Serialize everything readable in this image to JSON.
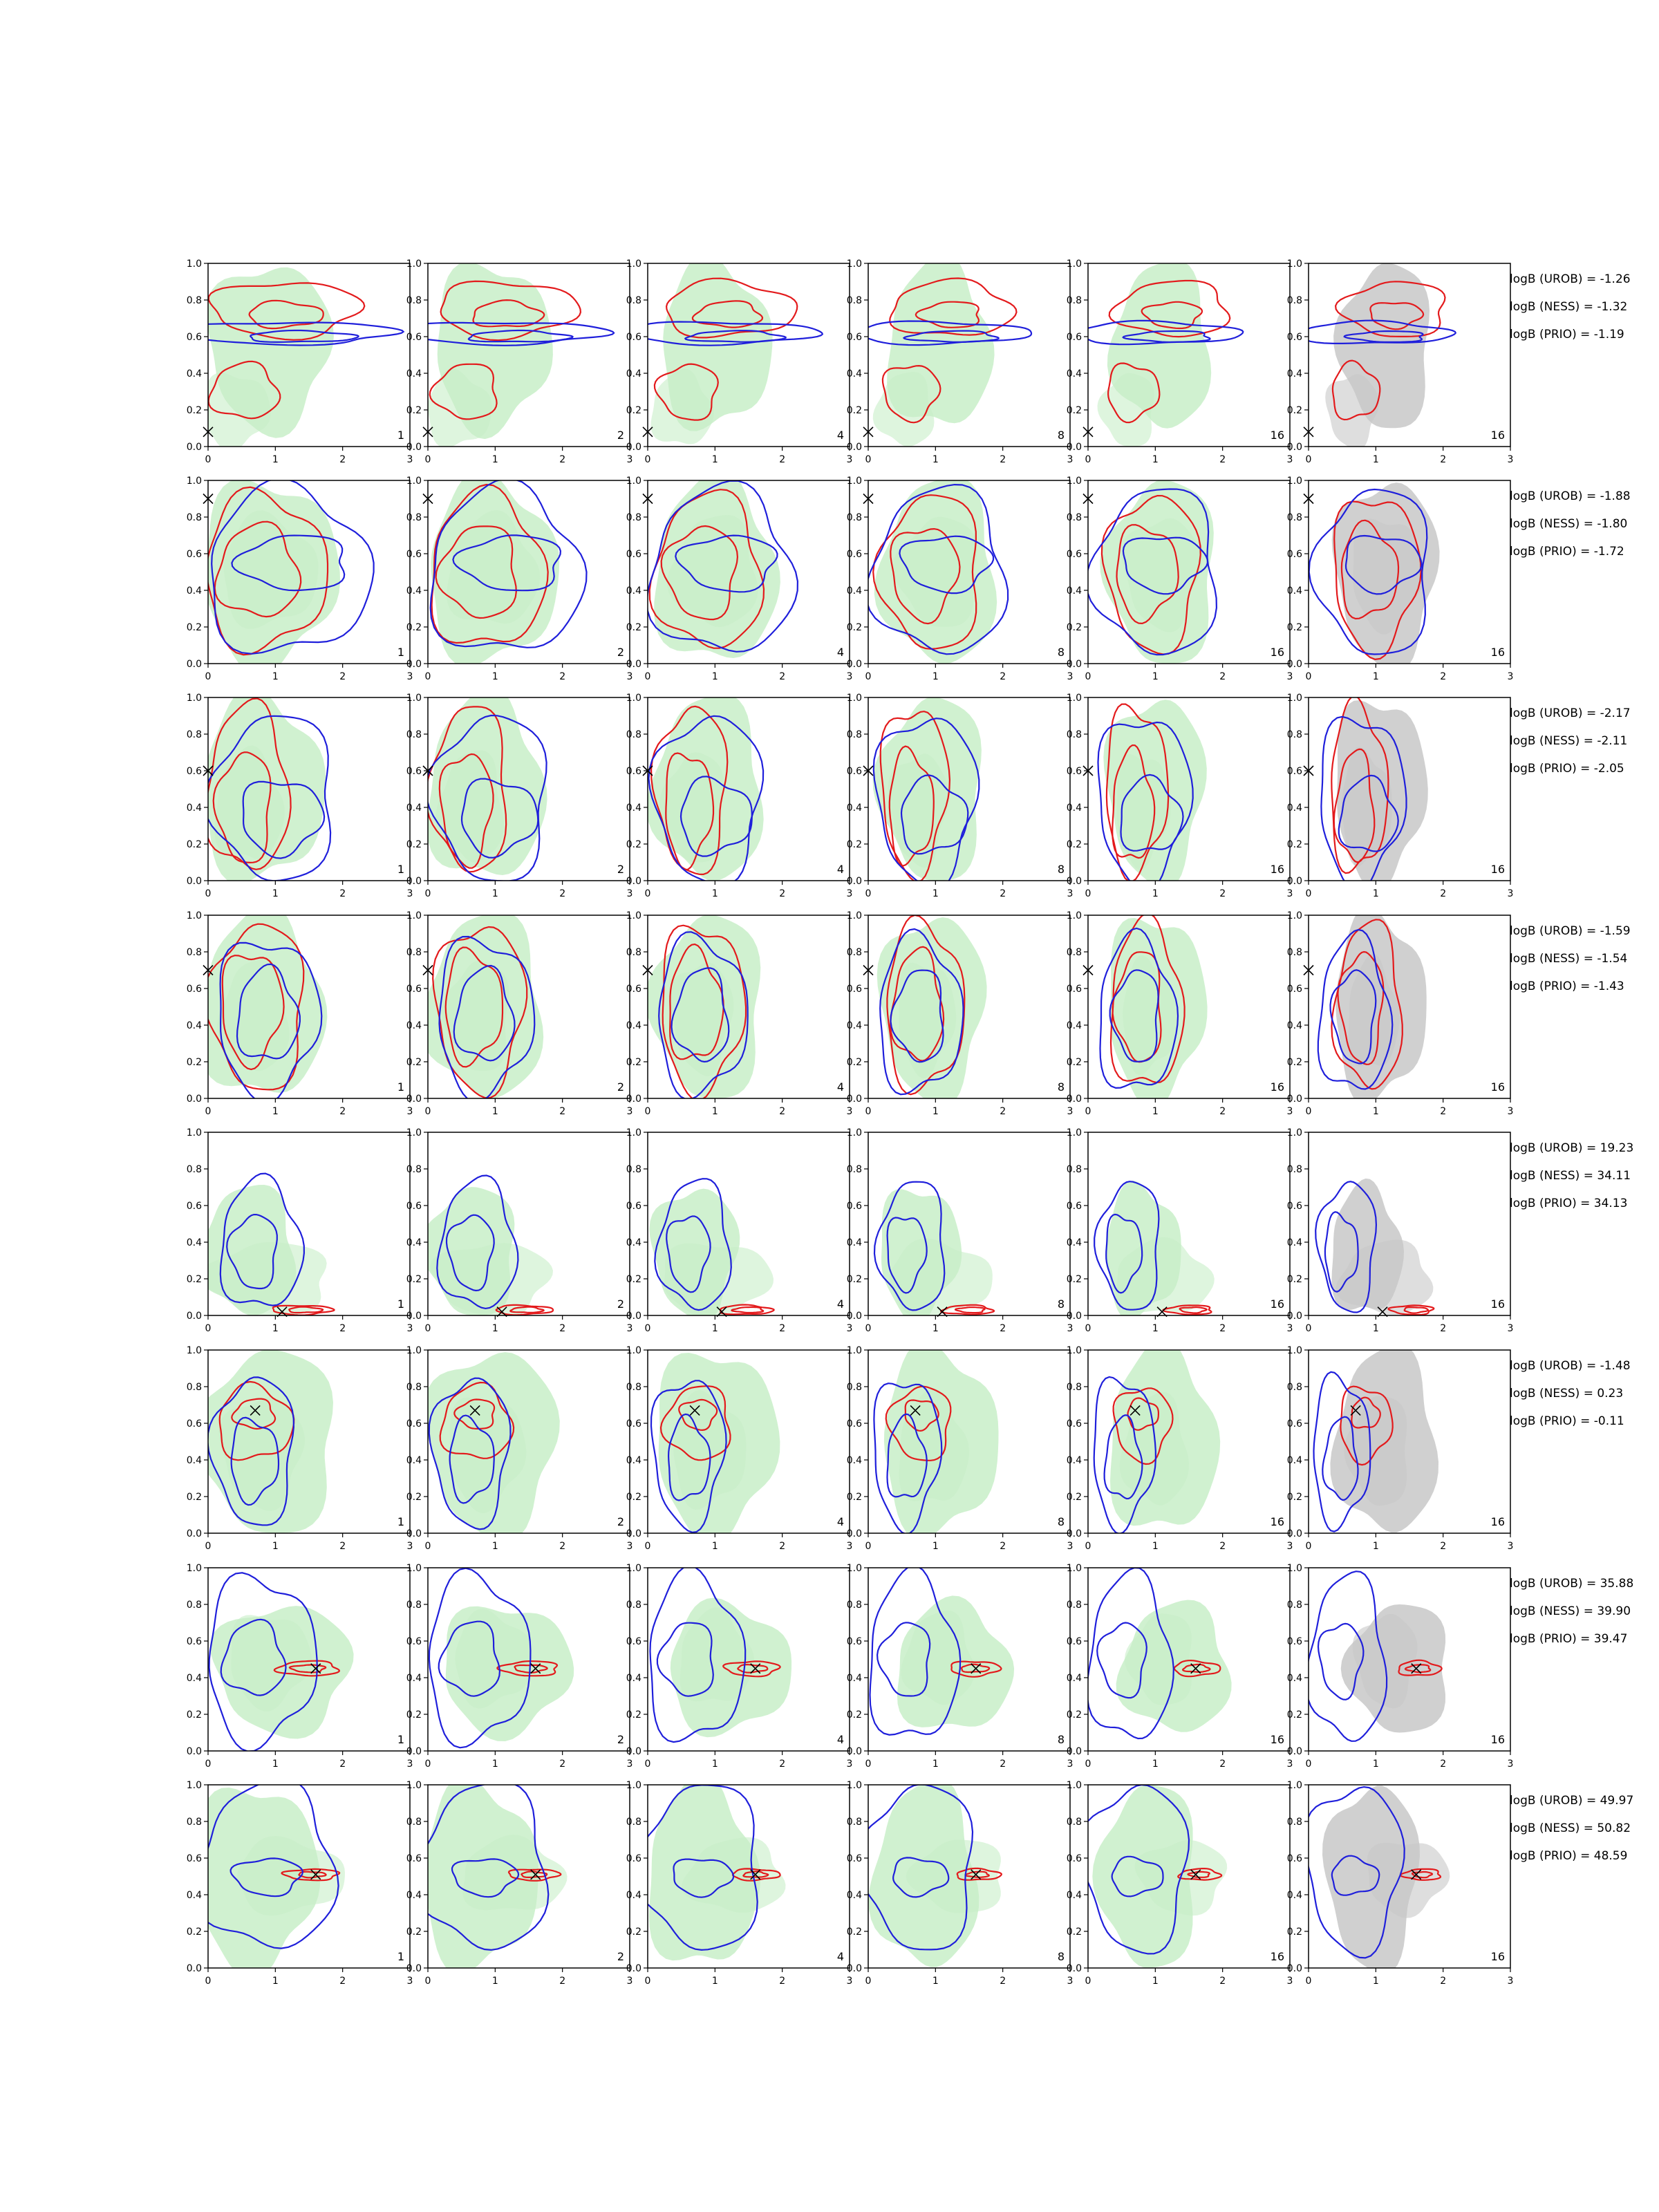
{
  "chart_data": {
    "type": "contour-grid",
    "n_rows": 8,
    "n_cols": 6,
    "xlim": [
      0,
      3
    ],
    "ylim": [
      0,
      1
    ],
    "xticks": [
      "0",
      "1",
      "2",
      "3"
    ],
    "yticks": [
      "0.0",
      "0.2",
      "0.4",
      "0.6",
      "0.8",
      "1.0"
    ],
    "panel_labels": [
      "1",
      "2",
      "4",
      "8",
      "16",
      "16"
    ],
    "colors": {
      "red": "#e31a1c",
      "blue": "#1f1fdb",
      "green_fill": "#c8efc8",
      "gray_fill": "#c8c8c8",
      "marker": "#000000"
    },
    "rows": [
      {
        "bayes_factors": [
          "logB (UROB) = -1.26",
          "logB (NESS) = -1.32",
          "logB (PRIO) = -1.19"
        ],
        "truth": [
          0.0,
          0.08
        ],
        "green": [
          [
            1.0,
            0.55,
            0.9,
            0.45
          ],
          [
            0.5,
            0.2,
            0.5,
            0.2
          ]
        ],
        "red": [
          [
            1.2,
            0.75,
            1.1,
            0.15
          ],
          [
            1.2,
            0.72,
            0.55,
            0.07
          ],
          [
            0.6,
            0.3,
            0.5,
            0.15
          ]
        ],
        "blue": [
          [
            1.1,
            0.62,
            1.6,
            0.06
          ],
          [
            1.3,
            0.6,
            0.8,
            0.03
          ]
        ]
      },
      {
        "bayes_factors": [
          "logB (UROB) = -1.88",
          "logB (NESS) = -1.80",
          "logB (PRIO) = -1.72"
        ],
        "truth": [
          0.0,
          0.9
        ],
        "green": [
          [
            1.0,
            0.5,
            1.0,
            0.5
          ],
          [
            1.0,
            0.5,
            0.7,
            0.3
          ]
        ],
        "red": [
          [
            0.9,
            0.5,
            0.9,
            0.42
          ],
          [
            0.8,
            0.5,
            0.6,
            0.25
          ]
        ],
        "blue": [
          [
            1.1,
            0.5,
            1.2,
            0.45
          ],
          [
            1.2,
            0.55,
            0.8,
            0.15
          ]
        ]
      },
      {
        "bayes_factors": [
          "logB (UROB) = -2.17",
          "logB (NESS) = -2.11",
          "logB (PRIO) = -2.05"
        ],
        "truth": [
          0.0,
          0.6
        ],
        "green": [
          [
            0.9,
            0.5,
            0.9,
            0.5
          ],
          [
            0.7,
            0.4,
            0.5,
            0.3
          ]
        ],
        "red": [
          [
            0.65,
            0.5,
            0.6,
            0.45
          ],
          [
            0.6,
            0.4,
            0.4,
            0.3
          ]
        ],
        "blue": [
          [
            0.9,
            0.45,
            0.9,
            0.45
          ],
          [
            1.0,
            0.35,
            0.6,
            0.2
          ]
        ]
      },
      {
        "bayes_factors": [
          "logB (UROB) = -1.59",
          "logB (NESS) = -1.54",
          "logB (PRIO) = -1.43"
        ],
        "truth": [
          0.0,
          0.7
        ],
        "green": [
          [
            0.9,
            0.5,
            0.9,
            0.5
          ],
          [
            0.8,
            0.45,
            0.5,
            0.3
          ]
        ],
        "red": [
          [
            0.8,
            0.5,
            0.7,
            0.45
          ],
          [
            0.7,
            0.5,
            0.45,
            0.3
          ]
        ],
        "blue": [
          [
            0.8,
            0.45,
            0.75,
            0.42
          ],
          [
            0.8,
            0.45,
            0.45,
            0.25
          ]
        ]
      },
      {
        "bayes_factors": [
          "logB (UROB) = 19.23",
          "logB (NESS) = 34.11",
          "logB (PRIO) = 34.13"
        ],
        "truth": [
          1.1,
          0.02
        ],
        "green": [
          [
            0.7,
            0.35,
            0.7,
            0.35
          ],
          [
            1.0,
            0.2,
            0.9,
            0.2
          ]
        ],
        "red": [
          [
            1.45,
            0.03,
            0.45,
            0.025
          ],
          [
            1.5,
            0.03,
            0.25,
            0.015
          ]
        ],
        "blue": [
          [
            0.7,
            0.38,
            0.6,
            0.35
          ],
          [
            0.6,
            0.35,
            0.35,
            0.2
          ]
        ]
      },
      {
        "bayes_factors": [
          "logB (UROB) = -1.48",
          "logB (NESS) = 0.23",
          "logB (PRIO) = -0.11"
        ],
        "truth": [
          0.7,
          0.67
        ],
        "green": [
          [
            1.0,
            0.5,
            1.0,
            0.5
          ],
          [
            0.9,
            0.45,
            0.6,
            0.3
          ]
        ],
        "red": [
          [
            0.75,
            0.6,
            0.55,
            0.2
          ],
          [
            0.75,
            0.65,
            0.3,
            0.08
          ]
        ],
        "blue": [
          [
            0.6,
            0.45,
            0.6,
            0.4
          ],
          [
            0.6,
            0.4,
            0.35,
            0.22
          ]
        ]
      },
      {
        "bayes_factors": [
          "logB (UROB) = 35.88",
          "logB (NESS) = 39.90",
          "logB (PRIO) = 39.47"
        ],
        "truth": [
          1.6,
          0.45
        ],
        "green": [
          [
            1.2,
            0.45,
            1.0,
            0.35
          ],
          [
            1.0,
            0.5,
            0.6,
            0.25
          ]
        ],
        "red": [
          [
            1.55,
            0.45,
            0.45,
            0.04
          ],
          [
            1.55,
            0.45,
            0.25,
            0.02
          ]
        ],
        "blue": [
          [
            0.7,
            0.5,
            0.8,
            0.45
          ],
          [
            0.6,
            0.5,
            0.45,
            0.2
          ]
        ]
      },
      {
        "bayes_factors": [
          "logB (UROB) = 49.97",
          "logB (NESS) = 50.82",
          "logB (PRIO) = 48.59"
        ],
        "truth": [
          1.6,
          0.51
        ],
        "green": [
          [
            0.8,
            0.5,
            0.9,
            0.5
          ],
          [
            1.3,
            0.5,
            0.8,
            0.2
          ]
        ],
        "red": [
          [
            1.6,
            0.51,
            0.4,
            0.03
          ],
          [
            1.6,
            0.51,
            0.2,
            0.015
          ]
        ],
        "blue": [
          [
            0.8,
            0.55,
            1.0,
            0.45
          ],
          [
            0.8,
            0.5,
            0.5,
            0.1
          ]
        ]
      }
    ]
  }
}
